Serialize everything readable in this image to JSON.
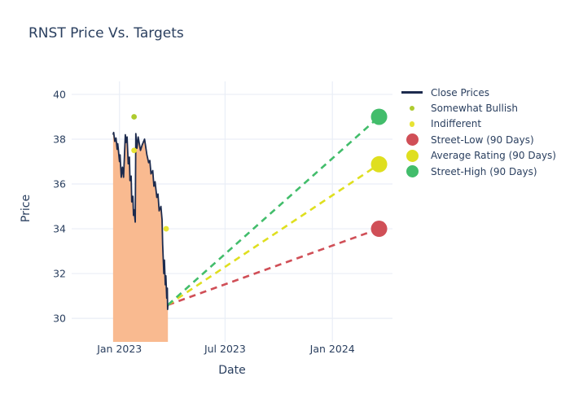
{
  "chart_data": {
    "type": "line",
    "title": "RNST Price Vs. Targets",
    "xlabel": "Date",
    "ylabel": "Price",
    "x_ticks": [
      {
        "day": 0,
        "label": "Jan 2023"
      },
      {
        "day": 181,
        "label": "Jul 2023"
      },
      {
        "day": 365,
        "label": "Jan 2024"
      }
    ],
    "y_ticks": [
      30,
      32,
      34,
      36,
      38,
      40
    ],
    "x_range_days": [
      -82,
      468
    ],
    "y_range": [
      28.95,
      40.58
    ],
    "grid": true,
    "legend_position": "right",
    "colors": {
      "text": "#2a3f5f",
      "grid": "#e9eef6",
      "background": "#ffffff"
    },
    "series": [
      {
        "name": "Close Prices",
        "type": "line+fill",
        "color": "#1d2b4e",
        "fill_color": "#f9ba90",
        "points": [
          [
            -11,
            38.2
          ],
          [
            -10,
            38.3
          ],
          [
            -8,
            37.9
          ],
          [
            -6,
            38.05
          ],
          [
            -4,
            37.55
          ],
          [
            -3,
            37.8
          ],
          [
            0,
            37.0
          ],
          [
            1,
            37.3
          ],
          [
            3,
            36.3
          ],
          [
            5,
            36.75
          ],
          [
            7,
            36.3
          ],
          [
            10,
            38.2
          ],
          [
            11,
            37.85
          ],
          [
            13,
            38.1
          ],
          [
            15,
            36.9
          ],
          [
            17,
            37.2
          ],
          [
            18,
            36.15
          ],
          [
            20,
            36.35
          ],
          [
            21,
            35.2
          ],
          [
            23,
            35.45
          ],
          [
            24,
            34.6
          ],
          [
            25,
            34.85
          ],
          [
            27,
            34.3
          ],
          [
            28,
            38.25
          ],
          [
            30,
            37.6
          ],
          [
            32,
            38.1
          ],
          [
            36,
            37.5
          ],
          [
            39,
            37.75
          ],
          [
            43,
            38.0
          ],
          [
            47,
            37.3
          ],
          [
            50,
            36.95
          ],
          [
            52,
            37.05
          ],
          [
            54,
            36.45
          ],
          [
            57,
            36.6
          ],
          [
            59,
            35.9
          ],
          [
            61,
            36.1
          ],
          [
            64,
            35.4
          ],
          [
            66,
            35.55
          ],
          [
            68,
            34.8
          ],
          [
            71,
            35.0
          ],
          [
            73,
            34.4
          ],
          [
            74,
            33.3
          ],
          [
            76,
            32.0
          ],
          [
            77,
            32.6
          ],
          [
            78.5,
            31.5
          ],
          [
            79.5,
            31.9
          ],
          [
            81,
            30.9
          ],
          [
            82,
            31.35
          ],
          [
            82.5,
            30.4
          ],
          [
            83,
            30.6
          ]
        ]
      },
      {
        "name": "Somewhat Bullish",
        "type": "scatter",
        "color": "#aecb2f",
        "points": [
          [
            25,
            39.0
          ]
        ]
      },
      {
        "name": "Indifferent",
        "type": "scatter",
        "color": "#e7e333",
        "points": [
          [
            25,
            37.5
          ],
          [
            80,
            34.0
          ]
        ]
      },
      {
        "name": "Street-Low (90 Days)",
        "type": "target",
        "color": "#d04f57",
        "dash_from": [
          83,
          30.6
        ],
        "point": [
          445,
          34.0
        ]
      },
      {
        "name": "Average Rating (90 Days)",
        "type": "target",
        "color": "#dfdf1f",
        "dash_from": [
          83,
          30.6
        ],
        "point": [
          445,
          36.88
        ]
      },
      {
        "name": "Street-High (90 Days)",
        "type": "target",
        "color": "#42bd6b",
        "dash_from": [
          83,
          30.6
        ],
        "point": [
          445,
          39.0
        ]
      }
    ]
  }
}
